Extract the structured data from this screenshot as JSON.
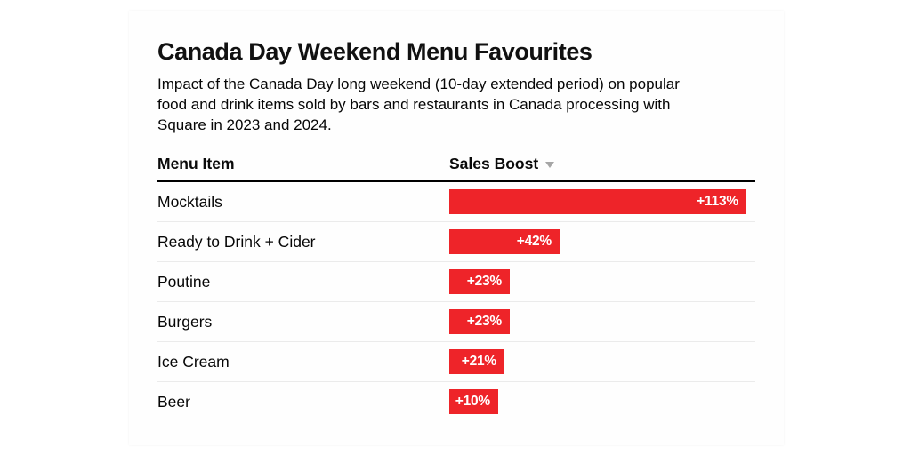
{
  "card": {
    "title": "Canada Day Weekend Menu Favourites",
    "subtitle": "Impact of the Canada Day long weekend (10-day extended period) on popular food and drink items sold by bars and restaurants in Canada processing with Square in 2023 and 2024.",
    "subtitle_lines": [
      "Impact of the Canada Day long weekend (10-day extended period) on popular",
      "food and drink items sold by bars and restaurants in Canada processing with",
      "Square in 2023 and 2024."
    ]
  },
  "table": {
    "columns": {
      "menu_item": "Menu Item",
      "sales_boost": "Sales Boost"
    },
    "sort_icon": "triangle-down-icon",
    "sort_direction": "descending"
  },
  "chart_data": {
    "type": "bar",
    "orientation": "horizontal",
    "title": "Canada Day Weekend Menu Favourites",
    "categories": [
      "Mocktails",
      "Ready to Drink + Cider",
      "Poutine",
      "Burgers",
      "Ice Cream",
      "Beer"
    ],
    "values": [
      113,
      42,
      23,
      23,
      21,
      10
    ],
    "labels": [
      "+113%",
      "+42%",
      "+23%",
      "+23%",
      "+21%",
      "+10%"
    ],
    "unit": "percent",
    "xlim": [
      0,
      120
    ],
    "grid": false,
    "legend": false,
    "bar_color": "#ee2429",
    "value_label_color": "#ffffff"
  },
  "colors": {
    "bar": "#ee2429",
    "separator": "#ebebeb",
    "header_rule": "#000000",
    "sort_arrow": "#a6a6a6",
    "text": "#0d0d0d"
  }
}
